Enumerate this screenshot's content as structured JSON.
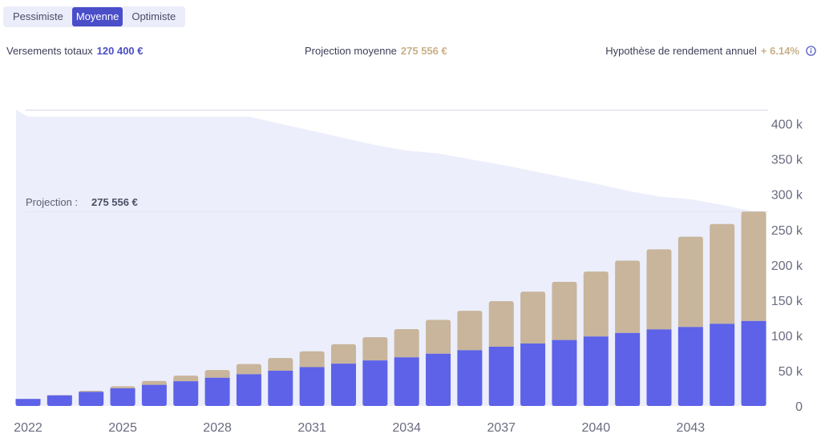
{
  "scenario_tabs": [
    {
      "label": "Pessimiste",
      "active": false
    },
    {
      "label": "Moyenne",
      "active": true
    },
    {
      "label": "Optimiste",
      "active": false
    }
  ],
  "summary": {
    "total_label": "Versements totaux",
    "total_value": "120 400 €",
    "projection_label": "Projection moyenne",
    "projection_value": "275 556 €",
    "rate_label": "Hypothèse de rendement annuel",
    "rate_value": "+ 6.14%",
    "info_icon": "info-circle-icon"
  },
  "colors": {
    "contributions": "#5d62e8",
    "gains": "#c8b59b",
    "optimistic_band": "#eceefb",
    "accent": "#4a4ec9"
  },
  "chart_data": {
    "type": "bar",
    "stacked": true,
    "x": [
      2022,
      2023,
      2024,
      2025,
      2026,
      2027,
      2028,
      2029,
      2030,
      2031,
      2032,
      2033,
      2034,
      2035,
      2036,
      2037,
      2038,
      2039,
      2040,
      2041,
      2042,
      2043,
      2044,
      2045
    ],
    "x_tick_labels": [
      "2022",
      "2025",
      "2028",
      "2031",
      "2034",
      "2037",
      "2040",
      "2043"
    ],
    "series": [
      {
        "values": [
          10000,
          15000,
          20000,
          25000,
          30000,
          35000,
          40000,
          45000,
          50000,
          55000,
          60000,
          64500,
          69000,
          74000,
          79000,
          84000,
          88500,
          93500,
          98500,
          103500,
          108500,
          112000,
          116500,
          120400
        ]
      },
      {
        "values": [
          200,
          500,
          1500,
          3000,
          5500,
          8000,
          11000,
          14500,
          18000,
          22500,
          27500,
          33000,
          40000,
          48000,
          56000,
          64500,
          73500,
          82500,
          92000,
          102500,
          113500,
          128000,
          141500,
          155156
        ]
      }
    ],
    "optimistic_band": [
      410000,
      410000,
      410000,
      410000,
      410000,
      410000,
      410000,
      410000,
      400000,
      390000,
      380000,
      370000,
      362000,
      358000,
      350000,
      342000,
      333000,
      324000,
      315000,
      305000,
      297000,
      293000,
      285000,
      275556
    ],
    "projection_line": {
      "label": "Projection :",
      "value": "275 556 €",
      "y": 275556
    },
    "y_ticks": [
      "0",
      "50 k",
      "100 k",
      "150 k",
      "200 k",
      "250 k",
      "300 k",
      "350 k",
      "400 k"
    ],
    "ylim": [
      0,
      420000
    ],
    "grid": false,
    "legend": "none"
  }
}
